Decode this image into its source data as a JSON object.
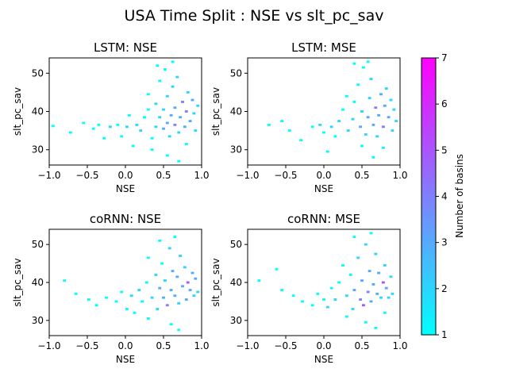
{
  "figure": {
    "suptitle": "USA Time Split : NSE vs slt_pc_sav"
  },
  "colorbar": {
    "label": "Number of basins",
    "ticks": [
      "1",
      "2",
      "3",
      "4",
      "5",
      "6",
      "7"
    ],
    "range": [
      1,
      7
    ],
    "colormap": "cool",
    "color_low": "#00ffff",
    "color_high": "#ff00ff"
  },
  "chart_data": [
    {
      "type": "heatmap",
      "title": "LSTM: NSE",
      "xlabel": "NSE",
      "ylabel": "slt_pc_sav",
      "xlim": [
        -1.0,
        1.0
      ],
      "ylim": [
        26,
        54
      ],
      "xticks": [
        "−1.0",
        "−0.5",
        "0.0",
        "0.5",
        "1.0"
      ],
      "yticks": [
        "30",
        "40",
        "50"
      ],
      "bin_size": [
        0.04,
        0.6
      ],
      "cells": [
        [
          -0.95,
          36.2,
          1
        ],
        [
          -0.72,
          34.5,
          1
        ],
        [
          -0.55,
          37.0,
          1
        ],
        [
          -0.42,
          35.5,
          1
        ],
        [
          -0.35,
          36.5,
          1
        ],
        [
          -0.28,
          33.0,
          1
        ],
        [
          -0.2,
          36.0,
          2
        ],
        [
          -0.1,
          36.5,
          1
        ],
        [
          -0.05,
          33.5,
          1
        ],
        [
          0.02,
          36.0,
          2
        ],
        [
          0.05,
          39.0,
          1
        ],
        [
          0.1,
          31.0,
          1
        ],
        [
          0.15,
          36.5,
          2
        ],
        [
          0.2,
          35.0,
          2
        ],
        [
          0.25,
          38.5,
          1
        ],
        [
          0.3,
          40.5,
          1
        ],
        [
          0.3,
          44.5,
          1
        ],
        [
          0.35,
          33.0,
          1
        ],
        [
          0.4,
          36.0,
          2
        ],
        [
          0.4,
          42.0,
          2
        ],
        [
          0.45,
          38.5,
          2
        ],
        [
          0.45,
          48.0,
          1
        ],
        [
          0.5,
          35.5,
          3
        ],
        [
          0.5,
          40.5,
          2
        ],
        [
          0.52,
          51.0,
          1
        ],
        [
          0.55,
          37.0,
          3
        ],
        [
          0.55,
          44.0,
          2
        ],
        [
          0.58,
          33.5,
          2
        ],
        [
          0.6,
          39.0,
          3
        ],
        [
          0.62,
          46.5,
          2
        ],
        [
          0.65,
          36.5,
          4
        ],
        [
          0.65,
          41.0,
          3
        ],
        [
          0.68,
          49.0,
          2
        ],
        [
          0.7,
          34.5,
          2
        ],
        [
          0.72,
          38.5,
          3
        ],
        [
          0.75,
          42.5,
          4
        ],
        [
          0.78,
          36.0,
          3
        ],
        [
          0.8,
          40.0,
          4
        ],
        [
          0.82,
          45.0,
          2
        ],
        [
          0.85,
          37.5,
          3
        ],
        [
          0.88,
          43.0,
          3
        ],
        [
          0.9,
          39.5,
          2
        ],
        [
          0.92,
          35.0,
          2
        ],
        [
          0.95,
          41.5,
          2
        ],
        [
          0.55,
          28.5,
          1
        ],
        [
          0.7,
          27.0,
          1
        ],
        [
          0.62,
          53.0,
          1
        ],
        [
          0.42,
          52.0,
          1
        ],
        [
          0.35,
          30.0,
          1
        ],
        [
          0.8,
          31.5,
          1
        ]
      ]
    },
    {
      "type": "heatmap",
      "title": "LSTM: MSE",
      "xlabel": "NSE",
      "ylabel": "slt_pc_sav",
      "xlim": [
        -1.0,
        1.0
      ],
      "ylim": [
        26,
        54
      ],
      "xticks": [
        "−1.0",
        "−0.5",
        "0.0",
        "0.5",
        "1.0"
      ],
      "yticks": [
        "30",
        "40",
        "50"
      ],
      "bin_size": [
        0.04,
        0.6
      ],
      "cells": [
        [
          -0.72,
          36.5,
          1
        ],
        [
          -0.55,
          37.5,
          1
        ],
        [
          -0.45,
          35.0,
          1
        ],
        [
          -0.3,
          32.5,
          1
        ],
        [
          -0.15,
          36.0,
          1
        ],
        [
          -0.05,
          36.5,
          2
        ],
        [
          0.0,
          34.5,
          1
        ],
        [
          0.05,
          29.5,
          1
        ],
        [
          0.1,
          36.0,
          2
        ],
        [
          0.15,
          33.5,
          1
        ],
        [
          0.2,
          37.5,
          2
        ],
        [
          0.25,
          40.5,
          1
        ],
        [
          0.3,
          44.0,
          1
        ],
        [
          0.32,
          35.0,
          2
        ],
        [
          0.38,
          38.0,
          2
        ],
        [
          0.4,
          42.5,
          1
        ],
        [
          0.45,
          47.0,
          1
        ],
        [
          0.48,
          36.0,
          3
        ],
        [
          0.5,
          40.0,
          2
        ],
        [
          0.52,
          51.5,
          1
        ],
        [
          0.55,
          34.0,
          2
        ],
        [
          0.58,
          38.5,
          3
        ],
        [
          0.6,
          43.5,
          2
        ],
        [
          0.62,
          48.5,
          2
        ],
        [
          0.65,
          36.5,
          3
        ],
        [
          0.68,
          41.0,
          4
        ],
        [
          0.7,
          33.5,
          2
        ],
        [
          0.72,
          39.0,
          3
        ],
        [
          0.75,
          44.5,
          3
        ],
        [
          0.78,
          36.0,
          4
        ],
        [
          0.8,
          41.5,
          3
        ],
        [
          0.82,
          46.0,
          2
        ],
        [
          0.85,
          38.5,
          3
        ],
        [
          0.88,
          43.0,
          2
        ],
        [
          0.9,
          35.0,
          2
        ],
        [
          0.92,
          40.5,
          2
        ],
        [
          0.95,
          37.5,
          2
        ],
        [
          0.5,
          31.0,
          1
        ],
        [
          0.65,
          28.0,
          1
        ],
        [
          0.58,
          53.0,
          1
        ],
        [
          0.4,
          52.5,
          1
        ],
        [
          0.78,
          30.5,
          1
        ]
      ]
    },
    {
      "type": "heatmap",
      "title": "coRNN: NSE",
      "xlabel": "NSE",
      "ylabel": "slt_pc_sav",
      "xlim": [
        -1.0,
        1.0
      ],
      "ylim": [
        26,
        54
      ],
      "xticks": [
        "−1.0",
        "−0.5",
        "0.0",
        "0.5",
        "1.0"
      ],
      "yticks": [
        "30",
        "40",
        "50"
      ],
      "bin_size": [
        0.04,
        0.6
      ],
      "cells": [
        [
          -0.8,
          40.5,
          1
        ],
        [
          -0.65,
          37.0,
          1
        ],
        [
          -0.48,
          35.5,
          1
        ],
        [
          -0.38,
          34.0,
          1
        ],
        [
          -0.25,
          36.0,
          1
        ],
        [
          -0.12,
          35.0,
          1
        ],
        [
          -0.05,
          37.5,
          1
        ],
        [
          0.02,
          33.0,
          1
        ],
        [
          0.08,
          36.5,
          2
        ],
        [
          0.12,
          32.0,
          1
        ],
        [
          0.18,
          38.0,
          2
        ],
        [
          0.22,
          35.0,
          1
        ],
        [
          0.28,
          40.0,
          1
        ],
        [
          0.3,
          46.5,
          1
        ],
        [
          0.35,
          36.0,
          2
        ],
        [
          0.4,
          42.0,
          2
        ],
        [
          0.42,
          33.0,
          2
        ],
        [
          0.45,
          38.5,
          3
        ],
        [
          0.48,
          45.0,
          1
        ],
        [
          0.5,
          36.0,
          3
        ],
        [
          0.52,
          40.5,
          2
        ],
        [
          0.55,
          34.0,
          4
        ],
        [
          0.58,
          49.0,
          2
        ],
        [
          0.6,
          38.0,
          3
        ],
        [
          0.62,
          43.0,
          3
        ],
        [
          0.65,
          36.5,
          3
        ],
        [
          0.68,
          41.5,
          3
        ],
        [
          0.7,
          34.5,
          2
        ],
        [
          0.72,
          47.0,
          2
        ],
        [
          0.75,
          39.0,
          3
        ],
        [
          0.78,
          44.0,
          2
        ],
        [
          0.8,
          35.5,
          3
        ],
        [
          0.82,
          40.0,
          5
        ],
        [
          0.85,
          38.0,
          3
        ],
        [
          0.88,
          42.5,
          3
        ],
        [
          0.9,
          36.5,
          2
        ],
        [
          0.92,
          41.0,
          3
        ],
        [
          0.95,
          37.5,
          2
        ],
        [
          0.6,
          29.0,
          1
        ],
        [
          0.7,
          27.5,
          1
        ],
        [
          0.65,
          52.0,
          1
        ],
        [
          0.45,
          51.0,
          1
        ],
        [
          0.3,
          30.5,
          1
        ]
      ]
    },
    {
      "type": "heatmap",
      "title": "coRNN: MSE",
      "xlabel": "NSE",
      "ylabel": "slt_pc_sav",
      "xlim": [
        -1.0,
        1.0
      ],
      "ylim": [
        26,
        54
      ],
      "xticks": [
        "−1.0",
        "−0.5",
        "0.0",
        "0.5",
        "1.0"
      ],
      "yticks": [
        "30",
        "40",
        "50"
      ],
      "bin_size": [
        0.04,
        0.6
      ],
      "cells": [
        [
          -0.85,
          40.5,
          1
        ],
        [
          -0.62,
          43.5,
          1
        ],
        [
          -0.55,
          38.0,
          1
        ],
        [
          -0.4,
          36.5,
          1
        ],
        [
          -0.28,
          35.0,
          1
        ],
        [
          -0.15,
          34.0,
          1
        ],
        [
          -0.08,
          37.0,
          1
        ],
        [
          0.0,
          35.5,
          1
        ],
        [
          0.05,
          33.5,
          2
        ],
        [
          0.1,
          38.5,
          1
        ],
        [
          0.15,
          35.5,
          2
        ],
        [
          0.2,
          40.0,
          1
        ],
        [
          0.25,
          44.5,
          1
        ],
        [
          0.3,
          36.5,
          2
        ],
        [
          0.35,
          42.0,
          1
        ],
        [
          0.38,
          33.0,
          2
        ],
        [
          0.4,
          38.0,
          3
        ],
        [
          0.45,
          46.5,
          2
        ],
        [
          0.48,
          35.5,
          4
        ],
        [
          0.5,
          40.5,
          3
        ],
        [
          0.52,
          34.0,
          5
        ],
        [
          0.55,
          50.0,
          2
        ],
        [
          0.58,
          37.5,
          4
        ],
        [
          0.6,
          43.0,
          3
        ],
        [
          0.62,
          35.0,
          3
        ],
        [
          0.65,
          39.5,
          3
        ],
        [
          0.68,
          47.5,
          2
        ],
        [
          0.7,
          37.0,
          3
        ],
        [
          0.72,
          42.5,
          3
        ],
        [
          0.75,
          36.0,
          2
        ],
        [
          0.78,
          40.0,
          5
        ],
        [
          0.8,
          44.5,
          2
        ],
        [
          0.82,
          38.5,
          3
        ],
        [
          0.85,
          36.0,
          2
        ],
        [
          0.88,
          41.5,
          2
        ],
        [
          0.9,
          37.0,
          2
        ],
        [
          0.55,
          29.5,
          1
        ],
        [
          0.68,
          28.0,
          1
        ],
        [
          0.62,
          53.0,
          1
        ],
        [
          0.4,
          52.0,
          1
        ],
        [
          0.3,
          31.0,
          1
        ],
        [
          0.8,
          32.0,
          1
        ]
      ]
    }
  ]
}
